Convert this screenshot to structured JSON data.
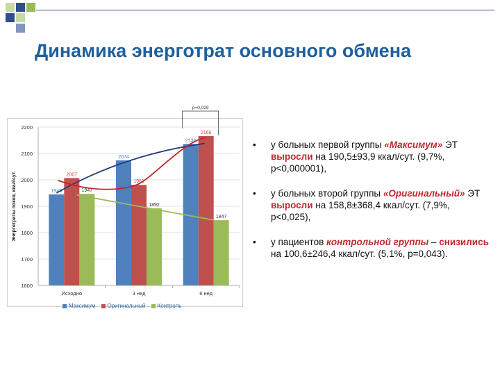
{
  "slide": {
    "title": "Динамика энерготрат основного обмена"
  },
  "bullets": [
    {
      "dot": "•",
      "parts": [
        "у больных первой группы ",
        "«Максимум»",
        " ЭТ ",
        "выросли",
        " на 190,5±93,9 ккал/сут. (9,7%, p<0,000001),"
      ]
    },
    {
      "dot": "•",
      "parts": [
        "у больных второй группы ",
        "«Оригинальный»",
        " ЭТ ",
        "выросли",
        " на 158,8±368,4 ккал/сут. (7,9%, p<0,025),"
      ]
    },
    {
      "dot": "•",
      "parts": [
        "у пациентов ",
        "контрольной группы",
        " – ",
        "снизились",
        " на 100,6±246,4 ккал/сут. (5,1%, p=0,043)."
      ]
    }
  ],
  "chart_data": {
    "type": "bar",
    "categories": [
      "Исходно",
      "3 нед",
      "6 нед"
    ],
    "series": [
      {
        "name": "Максимум",
        "values": [
          1945,
          2074,
          2136
        ],
        "labels": [
          "1945",
          "2074",
          "2136"
        ],
        "color": "#4f81bd"
      },
      {
        "name": "Оригинальный",
        "values": [
          2007,
          1981,
          2166
        ],
        "labels": [
          "2007",
          "1981",
          "2166"
        ],
        "color": "#c0504d"
      },
      {
        "name": "Контроль",
        "values": [
          1947,
          1892,
          1847
        ],
        "labels": [
          "1947",
          "1892",
          "1847"
        ],
        "color": "#9bbb59"
      }
    ],
    "ylabel": "Энерготраты покоя, ккал/сут.",
    "ylim": [
      1600,
      2200
    ],
    "yticks": [
      "1600",
      "1700",
      "1800",
      "1900",
      "2000",
      "2100",
      "2200"
    ],
    "grid": true,
    "legend_position": "bottom",
    "annotation": "p=0,029",
    "trend_colors": [
      "#1f3f7a",
      "#c0282d",
      "#9bbb59"
    ]
  },
  "colors": {
    "title": "#1f5f9e",
    "accent_red": "#c0282d",
    "deco_blue": "#2e4f8f",
    "deco_green": "#9bbb59"
  }
}
